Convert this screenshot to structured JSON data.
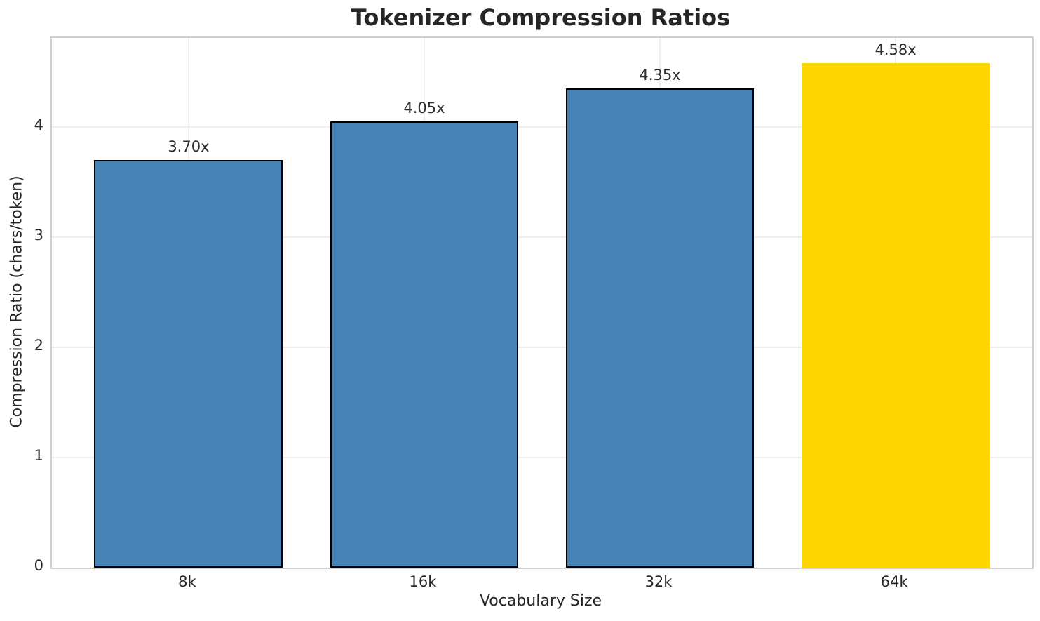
{
  "figure": {
    "background": "#ffffff"
  },
  "chart_data": {
    "type": "bar",
    "title": "Tokenizer Compression Ratios",
    "xlabel": "Vocabulary Size",
    "ylabel": "Compression Ratio (chars/token)",
    "categories": [
      "8k",
      "16k",
      "32k",
      "64k"
    ],
    "values": [
      3.7,
      4.05,
      4.35,
      4.58
    ],
    "bar_labels": [
      "3.70x",
      "4.05x",
      "4.35x",
      "4.58x"
    ],
    "bar_colors": [
      "#4682B4",
      "#4682B4",
      "#4682B4",
      "#FFD700"
    ],
    "bar_edge_colors": [
      "#000000",
      "#000000",
      "#000000",
      "none"
    ],
    "yticks": [
      0,
      1,
      2,
      3,
      4
    ],
    "ylim": [
      0,
      4.81
    ],
    "grid": true,
    "legend_position": "none",
    "colors": {
      "bar_default": "#4682B4",
      "bar_highlight": "#FFD700",
      "bar_edge": "#000000",
      "gridline": "#efefef",
      "spine": "#d0d0d0",
      "text": "#262626"
    }
  }
}
